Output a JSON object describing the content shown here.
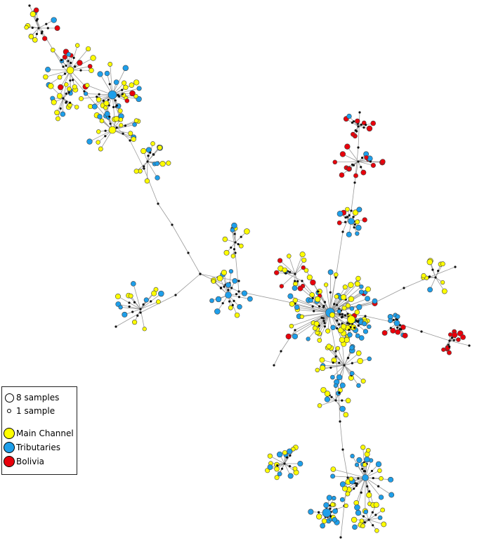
{
  "legend": {
    "size_large": {
      "label": "8 samples",
      "samples": 8
    },
    "size_small": {
      "label": "1 sample",
      "samples": 1
    },
    "groups": [
      {
        "label": "Main Channel",
        "color": "#ffff00"
      },
      {
        "label": "Tributaries",
        "color": "#1e9fea"
      },
      {
        "label": "Bolivia",
        "color": "#e8000b"
      }
    ]
  },
  "colors": {
    "edge": "#9a9a9a",
    "median_vector": "#111111",
    "node_outline": "#444444"
  }
}
